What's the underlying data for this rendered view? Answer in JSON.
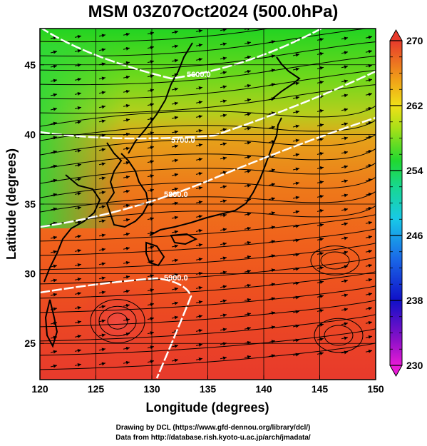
{
  "title": "MSM 03Z07Oct2024 (500.0hPa)",
  "credits": {
    "line1": "Drawing by DCL (https://www.gfd-dennou.org/library/dcl/)",
    "line2": "Data from http://database.rish.kyoto-u.ac.jp/arch/jmadata/"
  },
  "map": {
    "xlabel": "Longitude (degrees)",
    "ylabel": "Latitude  (degrees)",
    "lon_range": [
      120,
      150
    ],
    "lat_range": [
      22.4,
      47.6
    ],
    "lon_ticks": [
      "120",
      "125",
      "130",
      "135",
      "140",
      "145",
      "150"
    ],
    "lat_ticks": [
      "25",
      "30",
      "35",
      "40",
      "45"
    ],
    "grid": true
  },
  "contours": [
    {
      "label": "5600.0",
      "value": 5600
    },
    {
      "label": "5700.0",
      "value": 5700
    },
    {
      "label": "5800.0",
      "value": 5800
    },
    {
      "label": "5900.0",
      "value": 5900
    }
  ],
  "colorbar": {
    "min": 230,
    "max": 270,
    "ticks": [
      "270",
      "262",
      "254",
      "246",
      "238",
      "230"
    ],
    "tick_values": [
      270,
      262,
      254,
      246,
      238,
      230
    ]
  }
}
